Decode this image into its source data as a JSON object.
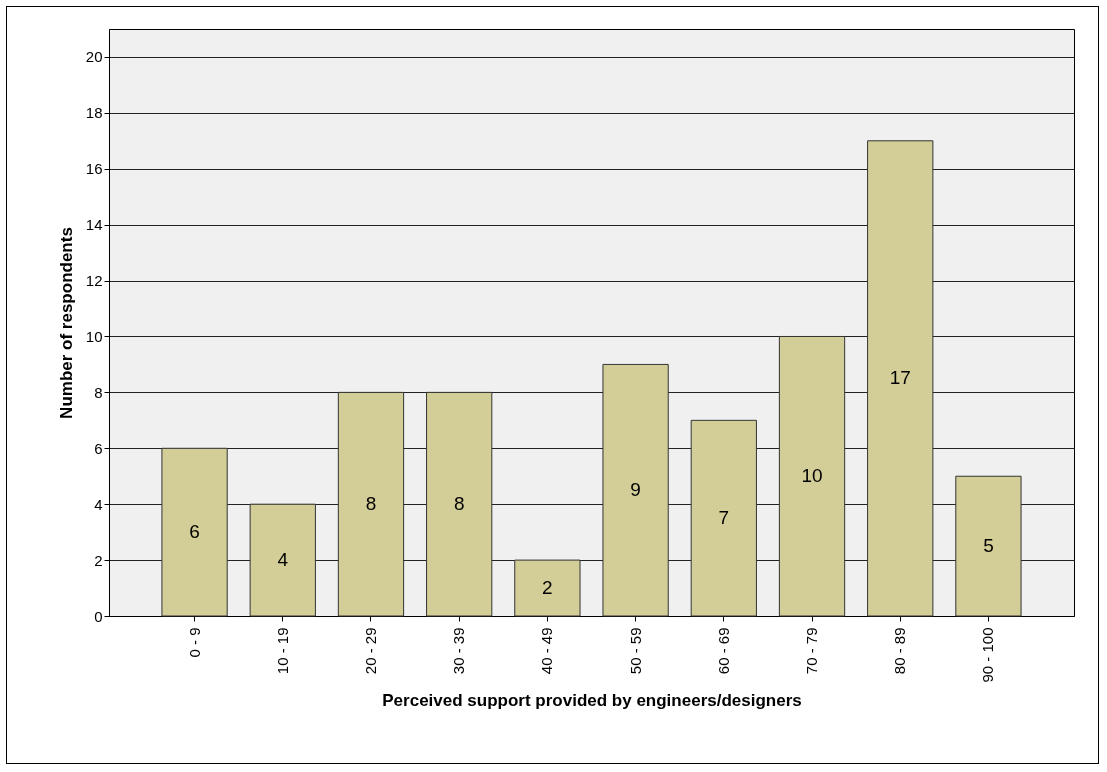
{
  "chart_data": {
    "type": "bar",
    "xlabel": "Perceived support provided by engineers/designers",
    "ylabel": "Number of respondents",
    "categories": [
      "0 - 9",
      "10 - 19",
      "20 - 29",
      "30 - 39",
      "40 - 49",
      "50 - 59",
      "60 - 69",
      "70 - 79",
      "80 - 89",
      "90 - 100"
    ],
    "values": [
      6,
      4,
      8,
      8,
      2,
      9,
      7,
      10,
      17,
      5
    ],
    "color": "#d3ce97",
    "ylim": [
      0,
      21
    ],
    "yticks": [
      0,
      2,
      4,
      6,
      8,
      10,
      12,
      14,
      16,
      18,
      20
    ],
    "grid": "y",
    "data_labels": true
  }
}
